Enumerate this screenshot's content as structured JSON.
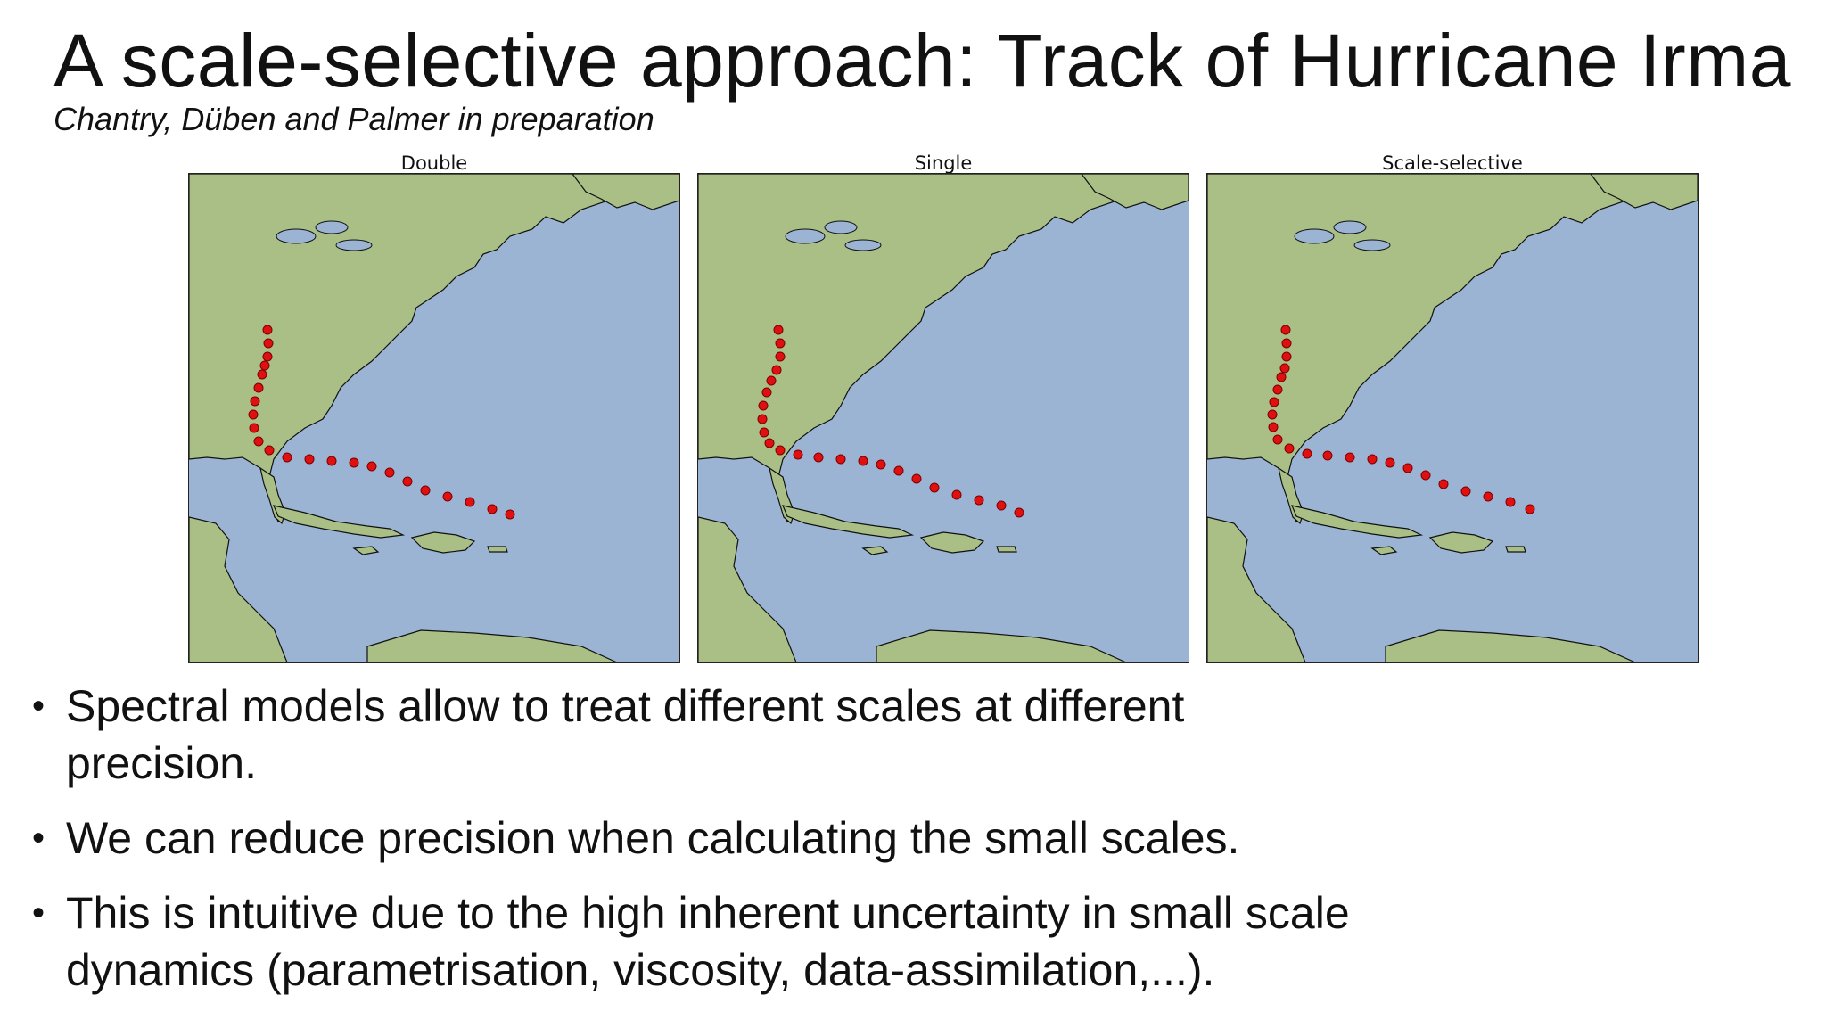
{
  "slide": {
    "title": "A scale-selective approach: Track of Hurricane Irma",
    "subtitle": "Chantry, Düben and Palmer in preparation"
  },
  "panels": [
    {
      "title": "Double"
    },
    {
      "title": "Single"
    },
    {
      "title": "Scale-selective"
    }
  ],
  "colors": {
    "ocean": "#9cb4d3",
    "land": "#a9bf86",
    "track": "#e01010"
  },
  "bullets": [
    {
      "text": "Spectral models allow to treat different scales at different precision."
    },
    {
      "text": "We can reduce precision when calculating the small scales."
    },
    {
      "text": "This is intuitive due to the high inherent uncertainty in small scale dynamics (parametrisation, viscosity, data-assimilation,...)."
    }
  ]
}
